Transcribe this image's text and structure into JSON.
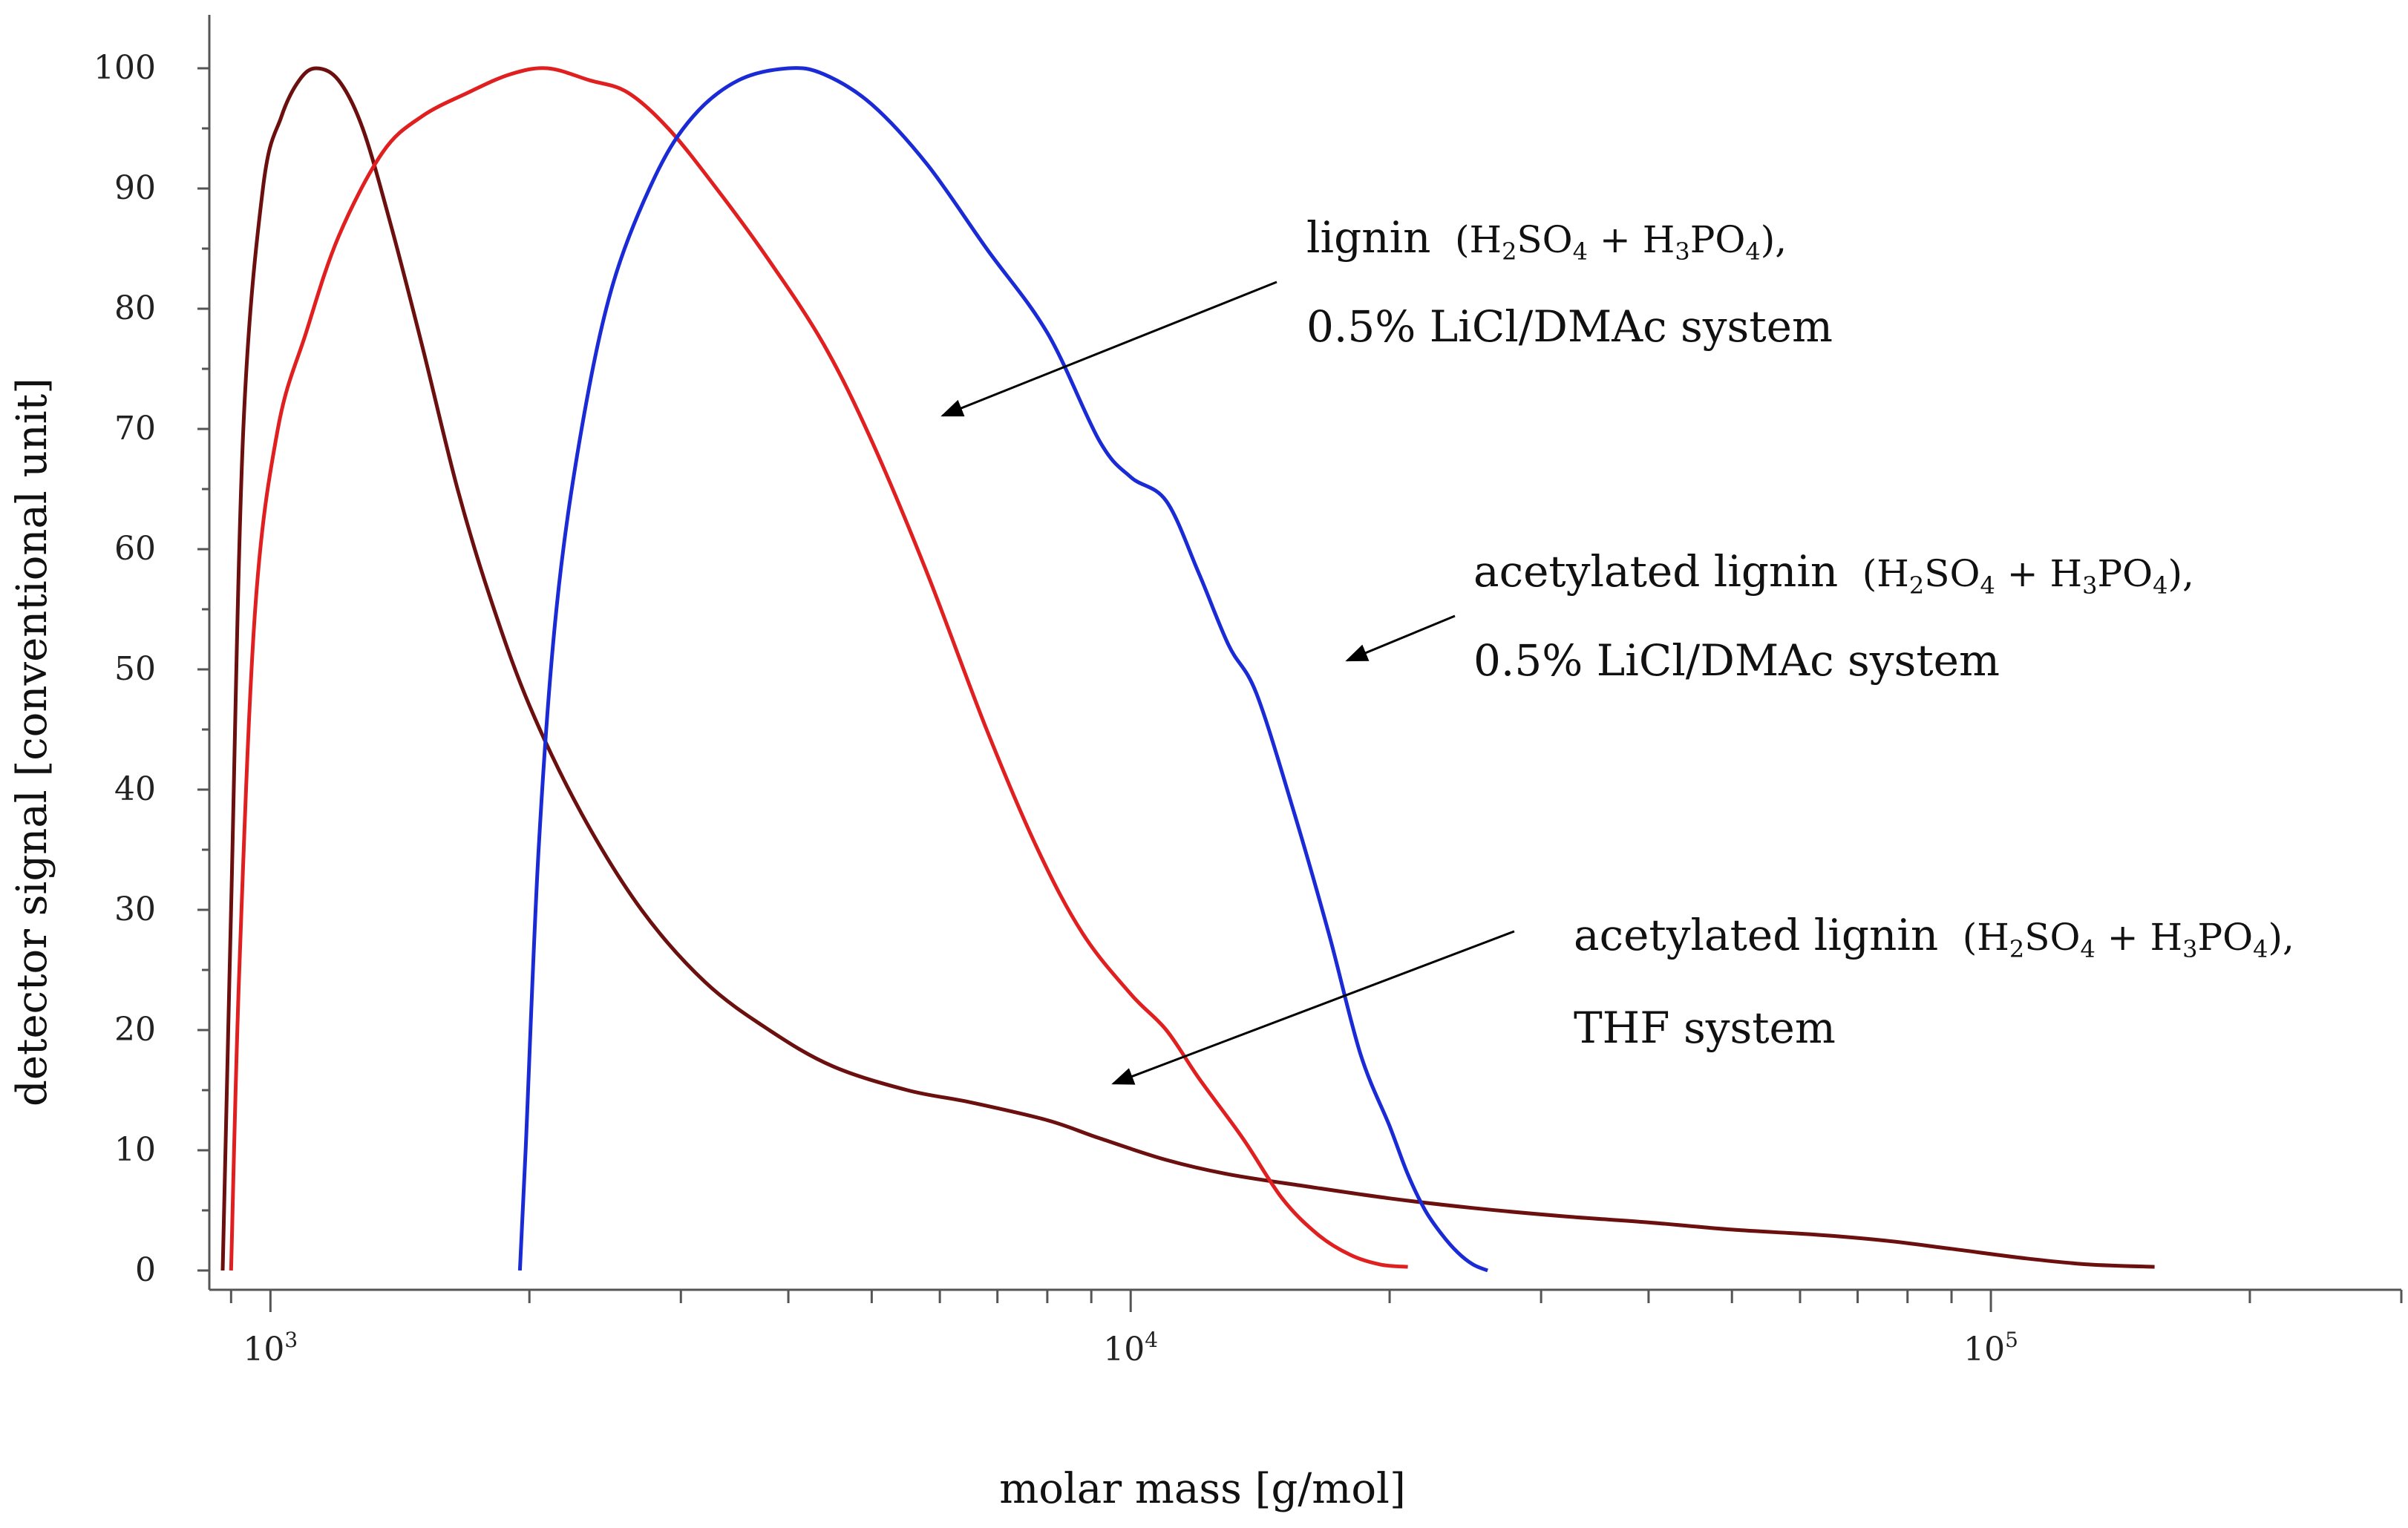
{
  "chart_data": {
    "type": "line",
    "title": "",
    "xlabel": "molar mass [g/mol]",
    "ylabel": "detector signal [conventional unit]",
    "xscale": "log",
    "xlim": [
      880,
      300000
    ],
    "ylim": [
      0,
      100
    ],
    "x_ticks": [
      {
        "value": 1000,
        "base": "10",
        "exp": "3"
      },
      {
        "value": 10000,
        "base": "10",
        "exp": "4"
      },
      {
        "value": 100000,
        "base": "10",
        "exp": "5"
      }
    ],
    "y_ticks": [
      "0",
      "10",
      "20",
      "30",
      "40",
      "50",
      "60",
      "70",
      "80",
      "90",
      "100"
    ],
    "grid": false,
    "series": [
      {
        "name": "acetylated lignin (H2SO4 + H3PO4), THF system",
        "color": "#6b0f0f",
        "x": [
          880,
          900,
          930,
          980,
          1030,
          1080,
          1130,
          1200,
          1280,
          1380,
          1500,
          1650,
          1800,
          2000,
          2300,
          2700,
          3200,
          3800,
          4500,
          5500,
          6500,
          8000,
          9200,
          11000,
          13000,
          16000,
          20000,
          25000,
          32000,
          40000,
          50000,
          62000,
          75000,
          90000,
          110000,
          130000,
          155000
        ],
        "y": [
          0,
          30,
          70,
          90,
          96,
          99,
          100,
          99,
          95,
          87,
          77,
          65,
          56,
          47,
          38,
          30,
          24,
          20,
          17,
          15,
          14,
          12.5,
          11,
          9.2,
          8,
          7,
          6,
          5.2,
          4.5,
          4,
          3.4,
          3,
          2.5,
          1.8,
          1,
          0.5,
          0.3
        ]
      },
      {
        "name": "lignin (H2SO4 + H3PO4), 0.5% LiCl/DMAc system",
        "color": "#e02020",
        "x": [
          900,
          920,
          960,
          1020,
          1100,
          1200,
          1350,
          1500,
          1700,
          1900,
          2100,
          2350,
          2600,
          2900,
          3300,
          3800,
          4400,
          5000,
          5800,
          6800,
          7800,
          8800,
          10000,
          11000,
          12000,
          13500,
          15000,
          16500,
          18000,
          19500,
          21000
        ],
        "y": [
          0,
          25,
          55,
          70,
          78,
          86,
          93,
          96,
          98,
          99.5,
          100,
          99,
          98,
          95,
          90,
          84,
          77,
          69,
          58,
          45,
          35,
          28,
          23,
          20,
          16,
          11,
          6,
          3,
          1.3,
          0.5,
          0.3
        ]
      },
      {
        "name": "acetylated lignin (H2SO4 + H3PO4), 0.5% LiCl/DMAc system",
        "color": "#1a2bd6",
        "x": [
          1950,
          1980,
          2050,
          2150,
          2300,
          2500,
          2800,
          3100,
          3500,
          4000,
          4400,
          5000,
          5800,
          6800,
          8000,
          9200,
          10000,
          11000,
          12000,
          13000,
          14000,
          15500,
          17000,
          18500,
          20000,
          21000,
          22000,
          23000,
          24000,
          25000,
          26000
        ],
        "y": [
          0,
          10,
          35,
          55,
          70,
          82,
          91,
          96,
          99,
          100,
          99.5,
          97,
          92,
          85,
          78,
          69,
          66,
          64,
          58,
          52,
          48,
          38,
          28,
          18,
          12,
          8,
          5,
          3,
          1.5,
          0.5,
          0
        ]
      }
    ],
    "annotations": [
      {
        "line1_a": "lignin",
        "line1_b": "(H",
        "s1": "2",
        "line1_c": "SO",
        "s2": "4",
        "line1_d": " + H",
        "s3": "3",
        "line1_e": "PO",
        "s4": "4",
        "line1_f": "),",
        "line2": "0.5% LiCl/DMAc system"
      },
      {
        "line1_a": "acetylated lignin",
        "line1_b": "(H",
        "s1": "2",
        "line1_c": "SO",
        "s2": "4",
        "line1_d": " + H",
        "s3": "3",
        "line1_e": "PO",
        "s4": "4",
        "line1_f": "),",
        "line2": "0.5% LiCl/DMAc system"
      },
      {
        "line1_a": "acetylated lignin",
        "line1_b": "(H",
        "s1": "2",
        "line1_c": "SO",
        "s2": "4",
        "line1_d": " + H",
        "s3": "3",
        "line1_e": "PO",
        "s4": "4",
        "line1_f": "),",
        "line2": "THF system"
      }
    ]
  }
}
